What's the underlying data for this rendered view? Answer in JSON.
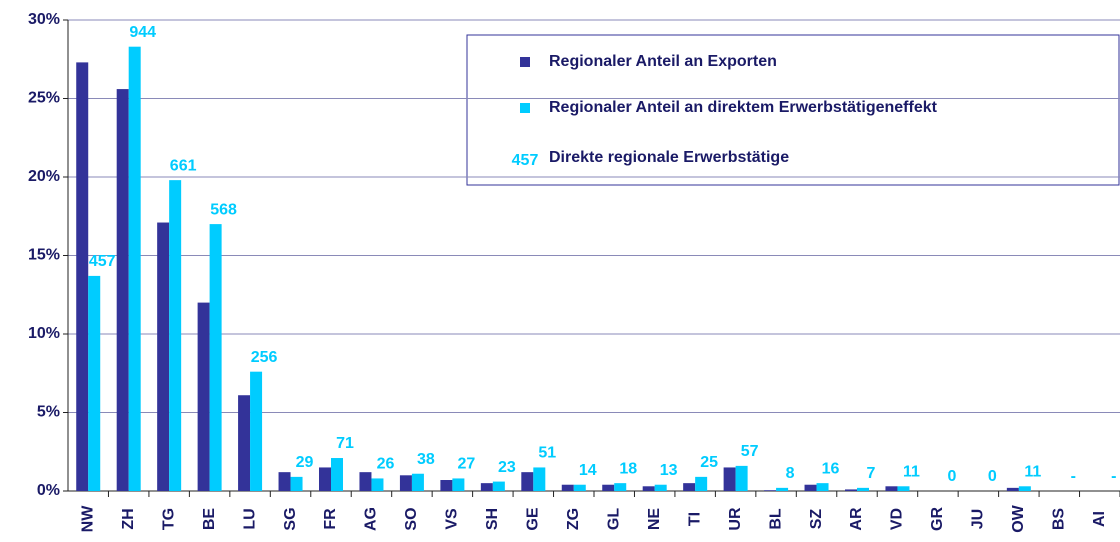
{
  "chart_data": {
    "type": "bar",
    "categories": [
      "NW",
      "ZH",
      "TG",
      "BE",
      "LU",
      "SG",
      "FR",
      "AG",
      "SO",
      "VS",
      "SH",
      "GE",
      "ZG",
      "GL",
      "NE",
      "TI",
      "UR",
      "BL",
      "SZ",
      "AR",
      "VD",
      "GR",
      "JU",
      "OW",
      "BS",
      "AI"
    ],
    "series": [
      {
        "name": "Regionaler Anteil an Exporten",
        "color": "#333399",
        "values": [
          27.3,
          25.6,
          17.1,
          12.0,
          6.1,
          1.2,
          1.5,
          1.2,
          1.0,
          0.7,
          0.5,
          1.2,
          0.4,
          0.4,
          0.3,
          0.5,
          1.5,
          0.05,
          0.4,
          0.1,
          0.3,
          0,
          0,
          0.2,
          0,
          0
        ]
      },
      {
        "name": "Regionaler Anteil an direktem Erwerbstätigeneffekt",
        "color": "#00ccff",
        "values": [
          13.7,
          28.3,
          19.8,
          17.0,
          7.6,
          0.9,
          2.1,
          0.8,
          1.1,
          0.8,
          0.6,
          1.5,
          0.4,
          0.5,
          0.4,
          0.9,
          1.6,
          0.2,
          0.5,
          0.2,
          0.3,
          0,
          0,
          0.3,
          0,
          0
        ]
      },
      {
        "name": "Direkte regionale Erwerbstätige",
        "color": "#00ccff",
        "values": [
          457,
          944,
          661,
          568,
          256,
          29,
          71,
          26,
          38,
          27,
          23,
          51,
          14,
          18,
          13,
          25,
          57,
          8,
          16,
          7,
          11,
          0,
          0,
          11,
          null,
          null
        ],
        "value_labels": [
          "457",
          "944",
          "661",
          "568",
          "256",
          "29",
          "71",
          "26",
          "38",
          "27",
          "23",
          "51",
          "14",
          "18",
          "13",
          "25",
          "57",
          "8",
          "16",
          "7",
          "11",
          "0",
          "0",
          "11",
          "-",
          "-"
        ]
      }
    ],
    "ylim": [
      0,
      30
    ],
    "yticks": [
      {
        "value": 0,
        "label": "0%"
      },
      {
        "value": 5,
        "label": "5%"
      },
      {
        "value": 10,
        "label": "10%"
      },
      {
        "value": 15,
        "label": "15%"
      },
      {
        "value": 20,
        "label": "20%"
      },
      {
        "value": 25,
        "label": "25%"
      },
      {
        "value": 30,
        "label": "30%"
      }
    ],
    "grid": true,
    "legend": "upper right"
  }
}
